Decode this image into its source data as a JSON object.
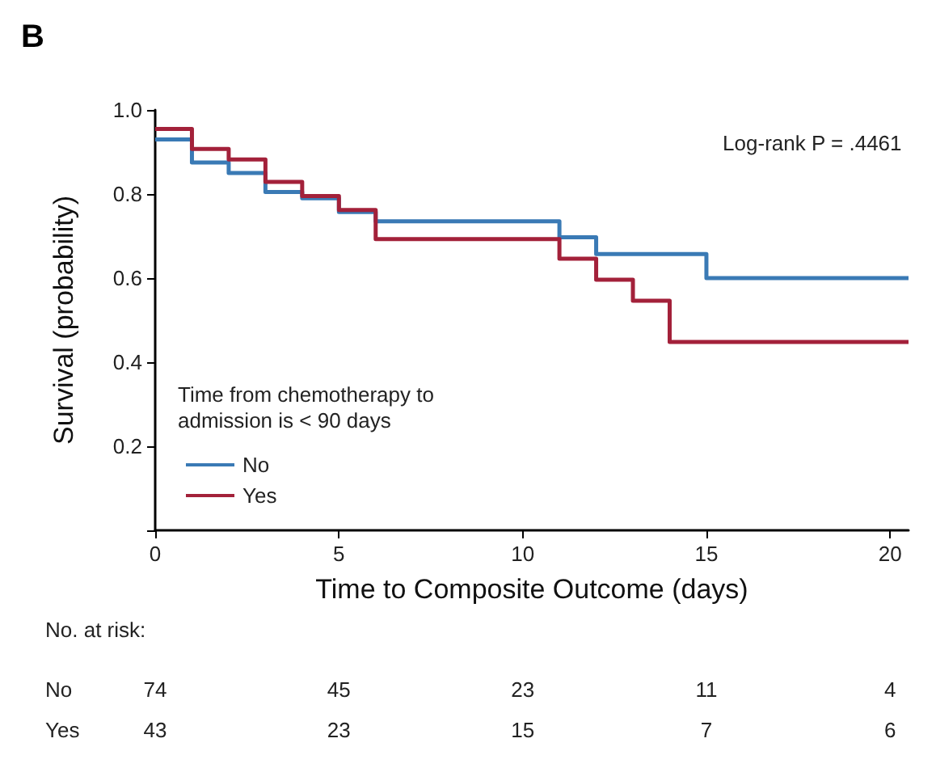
{
  "chart_data": {
    "type": "step",
    "title": "B",
    "xlabel": "Time to Composite Outcome (days)",
    "ylabel": "Survival (probability)",
    "legend_title": "Time from chemotherapy to admission is < 90 days",
    "legend": "bottom left",
    "grid": false,
    "marker": "none",
    "line_style": "solid",
    "xlim": [
      0,
      20.5
    ],
    "xticks": [
      0,
      5,
      10,
      15,
      20
    ],
    "ylim": [
      0,
      1.0
    ],
    "yticks": [
      {
        "value": 0,
        "label": null
      },
      0.2,
      0.4,
      0.6,
      0.8,
      {
        "value": 1,
        "label": "1.0"
      }
    ],
    "series": [
      {
        "name": "No",
        "color": "#3a7ab5",
        "x": [
          0,
          1,
          2,
          3,
          4,
          5,
          6,
          11,
          12,
          15,
          20.5
        ],
        "values": [
          0.93,
          0.875,
          0.85,
          0.805,
          0.79,
          0.757,
          0.735,
          0.697,
          0.657,
          0.6,
          0.6
        ]
      },
      {
        "name": "Yes",
        "color": "#a3213a",
        "x": [
          0,
          1,
          2,
          3,
          4,
          5,
          6,
          11,
          12,
          13,
          14,
          20.5
        ],
        "values": [
          0.955,
          0.907,
          0.882,
          0.829,
          0.795,
          0.762,
          0.693,
          0.646,
          0.596,
          0.546,
          0.448,
          0.448
        ]
      }
    ],
    "annotations": [
      "Log-rank P = .4461",
      "No. at risk:",
      "No",
      "74",
      "45",
      "23",
      "11",
      "4",
      "Yes",
      "43",
      "23",
      "15",
      "7",
      "6"
    ]
  }
}
